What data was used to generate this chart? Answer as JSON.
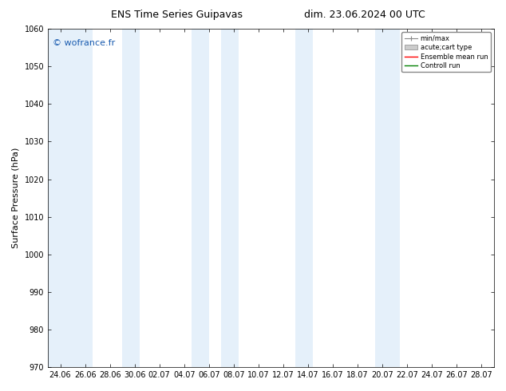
{
  "title_left": "ENS Time Series Guipavas",
  "title_right": "dim. 23.06.2024 00 UTC",
  "ylabel": "Surface Pressure (hPa)",
  "ylim": [
    970,
    1060
  ],
  "yticks": [
    970,
    980,
    990,
    1000,
    1010,
    1020,
    1030,
    1040,
    1050,
    1060
  ],
  "xtick_labels": [
    "24.06",
    "26.06",
    "28.06",
    "30.06",
    "02.07",
    "04.07",
    "06.07",
    "08.07",
    "10.07",
    "12.07",
    "14.07",
    "16.07",
    "18.07",
    "20.07",
    "22.07",
    "24.07",
    "26.07",
    "28.07"
  ],
  "n_xticks": 18,
  "band_color": "#daeaf8",
  "band_alpha": 0.7,
  "watermark": "© wofrance.fr",
  "watermark_color": "#1a5cb0",
  "legend_labels": [
    "min/max",
    "acute;cart type",
    "Ensemble mean run",
    "Controll run"
  ],
  "background_color": "#ffffff",
  "title_fontsize": 9,
  "ylabel_fontsize": 8,
  "tick_fontsize": 7,
  "watermark_fontsize": 8
}
